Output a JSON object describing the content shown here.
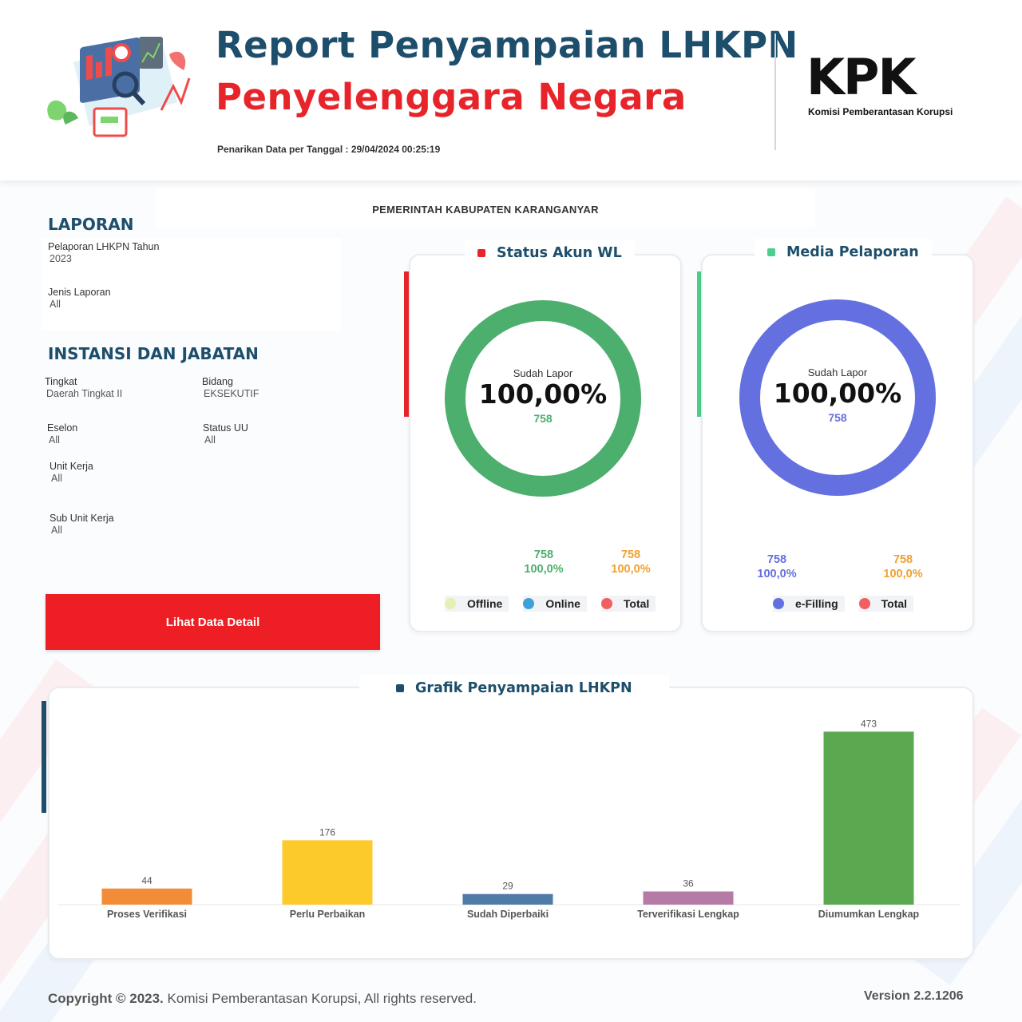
{
  "header": {
    "title": "Report Penyampaian LHKPN",
    "subtitle": "Penyelenggara Negara",
    "pull_date": "Penarikan Data per Tanggal : 29/04/2024 00:25:19",
    "logo_text": "KPK",
    "logo_tagline": "Komisi Pemberantasan Korupsi"
  },
  "instansi": "PEMERINTAH KABUPATEN KARANGANYAR",
  "laporan": {
    "heading": "LAPORAN",
    "fields": [
      {
        "label": "Pelaporan LHKPN Tahun",
        "value": "2023"
      },
      {
        "label": "Jenis Laporan",
        "value": "All"
      }
    ]
  },
  "jabatan": {
    "heading": "INSTANSI DAN JABATAN",
    "fields": [
      {
        "label": "Tingkat",
        "value": "Daerah Tingkat II"
      },
      {
        "label": "Bidang",
        "value": "EKSEKUTIF"
      },
      {
        "label": "Eselon",
        "value": "All"
      },
      {
        "label": "Status UU",
        "value": "All"
      },
      {
        "label": "Unit Kerja",
        "value": "All"
      },
      {
        "label": "Sub Unit Kerja",
        "value": "All"
      }
    ]
  },
  "detail_button": "Lihat Data Detail",
  "status_akun": {
    "title": "Status Akun WL",
    "center_caption": "Sudah Lapor",
    "center_percent": "100,00%",
    "center_count": "758",
    "fill_fraction": 1.0,
    "ring_color": "#4caf6e",
    "stats": [
      {
        "count": "758",
        "percent": "100,0%",
        "color": "#4caf6e"
      },
      {
        "count": "758",
        "percent": "100,0%",
        "color": "#f0a030"
      }
    ],
    "legend": [
      {
        "label": "Offline",
        "color": "#e4f0b4"
      },
      {
        "label": "Online",
        "color": "#3ea2d8"
      },
      {
        "label": "Total",
        "color": "#f06060"
      }
    ]
  },
  "media": {
    "title": "Media Pelaporan",
    "center_caption": "Sudah Lapor",
    "center_percent": "100,00%",
    "center_count": "758",
    "fill_fraction": 1.0,
    "ring_color": "#6470e0",
    "stats": [
      {
        "count": "758",
        "percent": "100,0%",
        "color": "#6470e0"
      },
      {
        "count": "758",
        "percent": "100,0%",
        "color": "#f0a030"
      }
    ],
    "legend": [
      {
        "label": "e-Filling",
        "color": "#6470e0"
      },
      {
        "label": "Total",
        "color": "#f06060"
      }
    ]
  },
  "grafik_title": "Grafik Penyampaian LHKPN",
  "chart_data": {
    "type": "bar",
    "categories": [
      "Proses Verifikasi",
      "Perlu Perbaikan",
      "Sudah Diperbaiki",
      "Terverifikasi Lengkap",
      "Diumumkan Lengkap"
    ],
    "values": [
      44,
      176,
      29,
      36,
      473
    ],
    "colors": [
      "#f28c38",
      "#fcca2b",
      "#4f7ba7",
      "#b57ba6",
      "#5aa84f"
    ],
    "ylim": [
      0,
      500
    ]
  },
  "footer": {
    "copyright_bold": "Copyright © 2023.",
    "copyright_rest": " Komisi Pemberantasan Korupsi, All rights reserved.",
    "version": "Version  2.2.1206"
  },
  "colors": {
    "brand_blue": "#1d4e6b",
    "brand_red": "#e8242b",
    "button_red": "#ed1f24"
  }
}
